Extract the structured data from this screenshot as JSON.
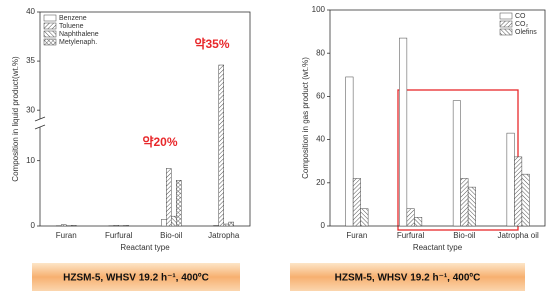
{
  "chart_data": [
    {
      "type": "bar",
      "ylabel": "Composition in liquid product(wt.%)",
      "xlabel": "Reactant type",
      "categories": [
        "Furan",
        "Furfural",
        "Bio-oil",
        "Jatropha"
      ],
      "series": [
        {
          "name": "Benzene",
          "color": "#ffffff",
          "hatch": "none",
          "values": [
            0.05,
            0.05,
            1.0,
            0.1
          ]
        },
        {
          "name": "Toluene",
          "color": "#ffffff",
          "hatch": "diagonal",
          "values": [
            0.2,
            0.1,
            8.8,
            34.6
          ]
        },
        {
          "name": "Naphthalene",
          "color": "#ffffff",
          "hatch": "backdiagonal",
          "values": [
            0.05,
            0.05,
            1.5,
            0.3
          ]
        },
        {
          "name": "Metylenaph.",
          "color": "#ffffff",
          "hatch": "cross",
          "values": [
            0.1,
            0.1,
            7.0,
            0.6
          ]
        }
      ],
      "ylim": [
        0,
        40
      ],
      "ybreak": [
        15,
        29
      ],
      "yticks": [
        0,
        10,
        30,
        35,
        40
      ],
      "legend": "upper left",
      "annotations": [
        "약20%",
        "약35%"
      ],
      "footer": "HZSM-5, WHSV 19.2 h⁻¹, 400ºC"
    },
    {
      "type": "bar",
      "ylabel": "Composition in gas product (wt.%)",
      "xlabel": "Reactant type",
      "categories": [
        "Furan",
        "Furfural",
        "Bio-oil",
        "Jatropha oil"
      ],
      "series": [
        {
          "name": "CO",
          "color": "#ffffff",
          "hatch": "none",
          "values": [
            69,
            87,
            58,
            43
          ]
        },
        {
          "name": "CO₂",
          "color": "#ffffff",
          "hatch": "diagonal",
          "values": [
            22,
            8,
            22,
            32
          ]
        },
        {
          "name": "Olefins",
          "color": "#ffffff",
          "hatch": "backdiagonal",
          "values": [
            8,
            4,
            18,
            24
          ]
        }
      ],
      "ylim": [
        0,
        100
      ],
      "yticks": [
        0,
        20,
        40,
        60,
        80,
        100
      ],
      "legend": "upper right",
      "footer": "HZSM-5, WHSV 19.2 h⁻¹, 400ºC"
    }
  ]
}
